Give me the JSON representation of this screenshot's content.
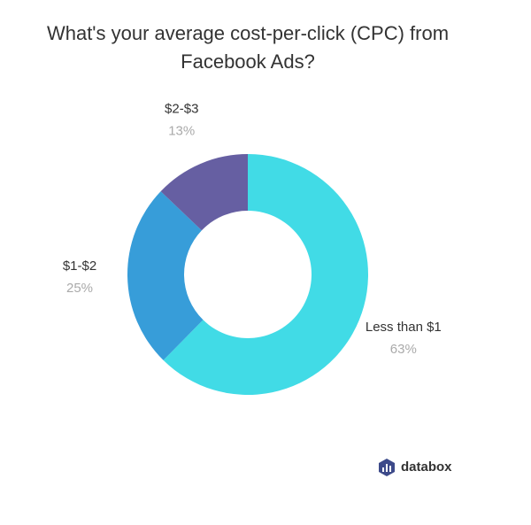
{
  "chart_data": {
    "type": "donut",
    "title": "What's your average cost-per-click (CPC) from Facebook Ads?",
    "categories": [
      "Less than $1",
      "$1-$2",
      "$2-$3"
    ],
    "values": [
      63,
      25,
      13
    ],
    "value_labels": [
      "63%",
      "25%",
      "13%"
    ],
    "colors": [
      "#41dbe6",
      "#379dd9",
      "#665fa2"
    ]
  },
  "brand": "databox"
}
